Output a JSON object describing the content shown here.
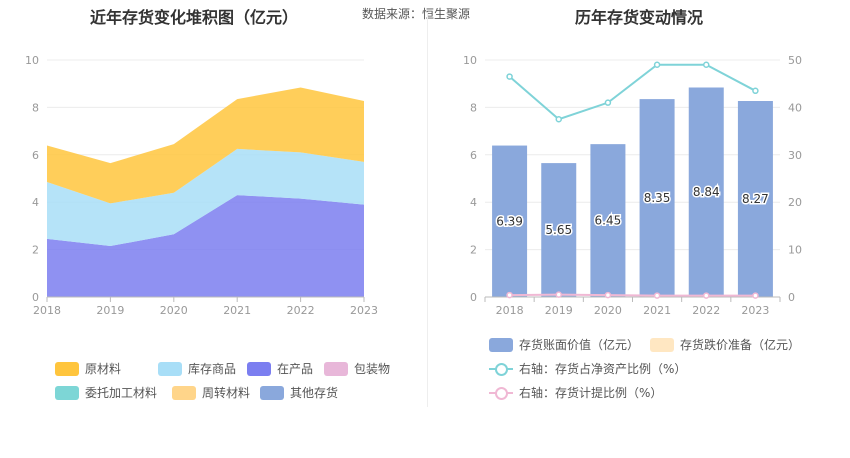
{
  "left_chart": {
    "title": "近年存货变化堆积图（亿元）",
    "source": "数据来源：恒生聚源"
  },
  "right_chart": {
    "title": "历年存货变动情况"
  },
  "colors": {
    "raw_material": "#ffc53d",
    "inventory_goods": "#a8def7",
    "wip": "#7b7ef0",
    "packaging": "#e8b7d9",
    "outsourced": "#7dd6d6",
    "turnover": "#ffd58a",
    "other": "#8aa8dc",
    "book_value": "#8aa8dc",
    "impairment": "#ffe7c2",
    "ratio_net_assets": "#7fd3d8",
    "provision_ratio": "#f0b8d4"
  },
  "chart_data": [
    {
      "type": "area",
      "stacked": true,
      "x": [
        "2018",
        "2019",
        "2020",
        "2021",
        "2022",
        "2023"
      ],
      "ylim": [
        0,
        10
      ],
      "yticks": [
        0,
        2,
        4,
        6,
        8,
        10
      ],
      "grid": true,
      "legend_position": "bottom",
      "series": [
        {
          "name": "在产品",
          "color_key": "wip",
          "values": [
            2.45,
            2.15,
            2.65,
            4.3,
            4.15,
            3.9
          ]
        },
        {
          "name": "库存商品",
          "color_key": "inventory_goods",
          "values": [
            2.4,
            1.8,
            1.75,
            1.95,
            1.95,
            1.8
          ]
        },
        {
          "name": "原材料",
          "color_key": "raw_material",
          "values": [
            1.54,
            1.7,
            2.05,
            2.1,
            2.74,
            2.57
          ]
        }
      ],
      "legend": [
        {
          "name": "原材料",
          "color_key": "raw_material"
        },
        {
          "name": "库存商品",
          "color_key": "inventory_goods"
        },
        {
          "name": "在产品",
          "color_key": "wip"
        },
        {
          "name": "包装物",
          "color_key": "packaging"
        },
        {
          "name": "委托加工材料",
          "color_key": "outsourced"
        },
        {
          "name": "周转材料",
          "color_key": "turnover"
        },
        {
          "name": "其他存货",
          "color_key": "other"
        }
      ]
    },
    {
      "type": "bar",
      "categories": [
        "2018",
        "2019",
        "2020",
        "2021",
        "2022",
        "2023"
      ],
      "ylim": [
        0,
        10
      ],
      "yticks": [
        0,
        2,
        4,
        6,
        8,
        10
      ],
      "y2lim": [
        0,
        50
      ],
      "y2ticks": [
        0,
        10,
        20,
        30,
        40,
        50
      ],
      "grid": true,
      "legend_position": "bottom",
      "series": [
        {
          "name": "存货账面价值（亿元）",
          "axis": "left",
          "kind": "bar",
          "color_key": "book_value",
          "values": [
            6.39,
            5.65,
            6.45,
            8.35,
            8.84,
            8.27
          ],
          "labels": [
            "6.39",
            "5.65",
            "6.45",
            "8.35",
            "8.84",
            "8.27"
          ]
        },
        {
          "name": "存货跌价准备（亿元）",
          "axis": "left",
          "kind": "bar",
          "color_key": "impairment",
          "values": [
            0,
            0,
            0,
            0,
            0,
            0
          ]
        },
        {
          "name": "右轴：存货占净资产比例（%）",
          "axis": "right",
          "kind": "line",
          "color_key": "ratio_net_assets",
          "values": [
            46.5,
            37.5,
            41.0,
            49.0,
            49.0,
            43.5
          ]
        },
        {
          "name": "右轴：存货计提比例（%）",
          "axis": "right",
          "kind": "line",
          "color_key": "provision_ratio",
          "values": [
            0.4,
            0.5,
            0.4,
            0.3,
            0.3,
            0.3
          ]
        }
      ]
    }
  ]
}
